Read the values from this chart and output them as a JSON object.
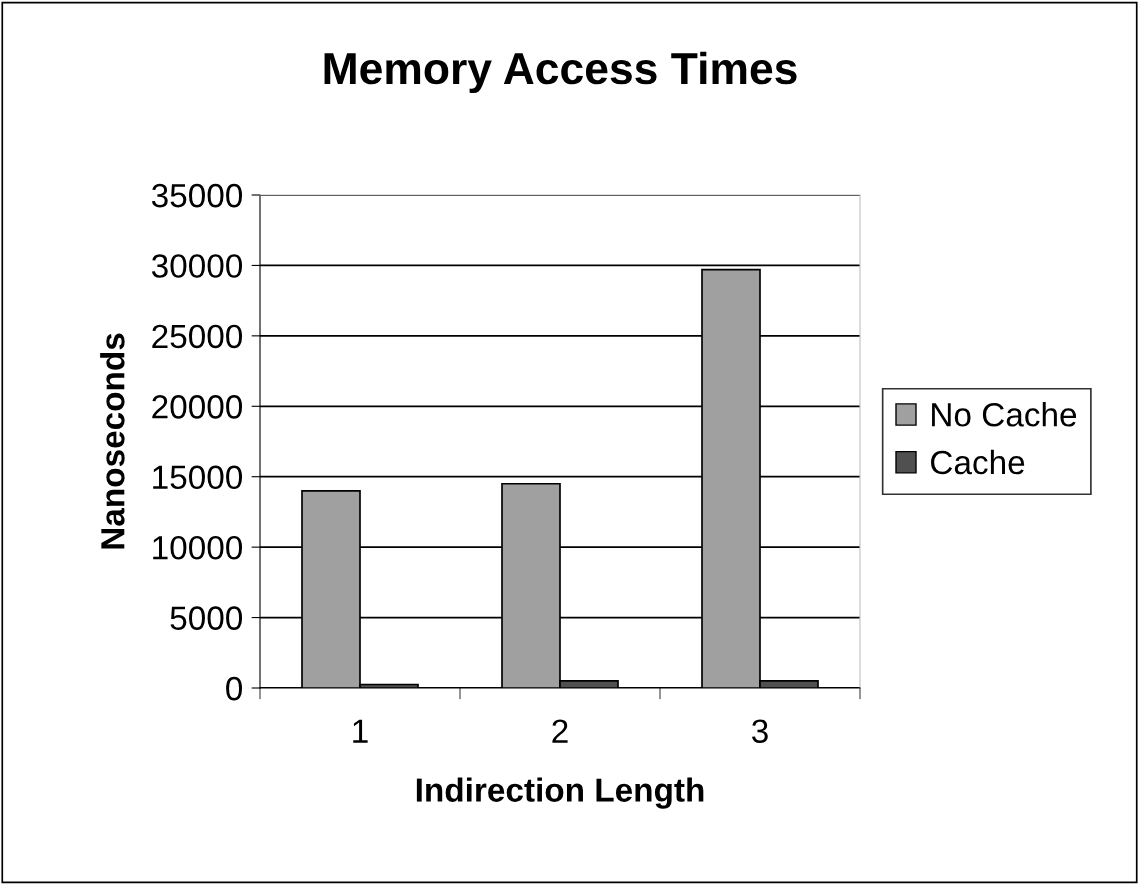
{
  "chart_data": {
    "type": "bar",
    "title": "Memory Access Times",
    "xlabel": "Indirection Length",
    "ylabel": "Nanoseconds",
    "categories": [
      "1",
      "2",
      "3"
    ],
    "series": [
      {
        "name": "No Cache",
        "color": "#a0a0a0",
        "values": [
          14000,
          14500,
          29700
        ]
      },
      {
        "name": "Cache",
        "color": "#505050",
        "values": [
          250,
          500,
          500
        ]
      }
    ],
    "ylim": [
      0,
      35000
    ],
    "yticks": [
      0,
      5000,
      10000,
      15000,
      20000,
      25000,
      30000,
      35000
    ],
    "grid": "y",
    "legend": "right"
  }
}
